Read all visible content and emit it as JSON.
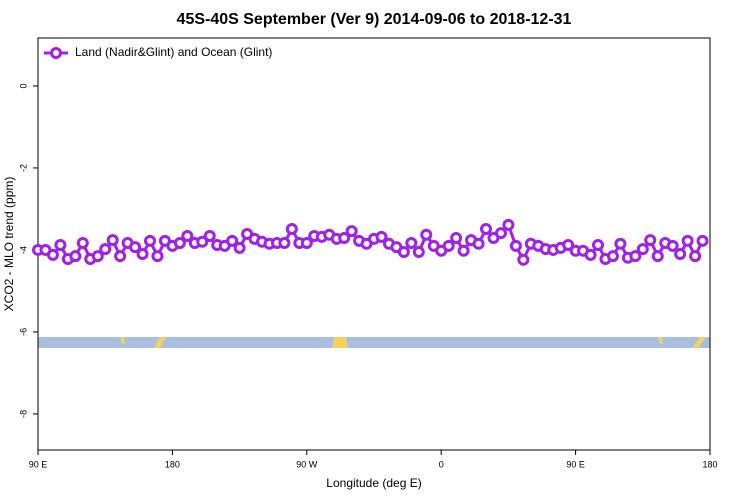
{
  "chart_data": {
    "type": "line",
    "title": "45S-40S September (Ver 9)   2014-09-06 to 2018-12-31",
    "xlabel": "Longitude (deg E)",
    "ylabel": "XCO2 - MLO trend (ppm)",
    "x": [
      90,
      95,
      100,
      105,
      110,
      115,
      120,
      125,
      130,
      135,
      140,
      145,
      150,
      155,
      160,
      165,
      170,
      175,
      180,
      185,
      190,
      195,
      200,
      205,
      210,
      215,
      220,
      225,
      230,
      235,
      240,
      245,
      250,
      255,
      260,
      265,
      270,
      275,
      280,
      285,
      290,
      295,
      300,
      305,
      310,
      315,
      320,
      325,
      330,
      335,
      340,
      345,
      350,
      355,
      360,
      365,
      370,
      375,
      380,
      385,
      390,
      395,
      400,
      405,
      410,
      415,
      420,
      425,
      430,
      435,
      440,
      445,
      450,
      455,
      460,
      465,
      470,
      475,
      480,
      485,
      490,
      495,
      500,
      505,
      510,
      515,
      520,
      525,
      530,
      535
    ],
    "series": [
      {
        "name": "Land (Nadir&Glint) and Ocean (Glint)",
        "color": "#a020f0",
        "values": [
          -4.0,
          -4.0,
          -4.12,
          -3.88,
          -4.22,
          -4.15,
          -3.83,
          -4.22,
          -4.15,
          -3.98,
          -3.76,
          -4.15,
          -3.83,
          -3.93,
          -4.1,
          -3.78,
          -4.15,
          -3.78,
          -3.9,
          -3.83,
          -3.66,
          -3.83,
          -3.8,
          -3.66,
          -3.88,
          -3.9,
          -3.78,
          -3.95,
          -3.61,
          -3.73,
          -3.8,
          -3.85,
          -3.83,
          -3.83,
          -3.49,
          -3.83,
          -3.83,
          -3.66,
          -3.68,
          -3.63,
          -3.73,
          -3.71,
          -3.54,
          -3.78,
          -3.85,
          -3.73,
          -3.68,
          -3.85,
          -3.93,
          -4.05,
          -3.83,
          -4.05,
          -3.63,
          -3.9,
          -4.02,
          -3.9,
          -3.71,
          -4.02,
          -3.76,
          -3.85,
          -3.49,
          -3.71,
          -3.59,
          -3.39,
          -3.9,
          -4.24,
          -3.85,
          -3.9,
          -3.98,
          -4.0,
          -3.95,
          -3.88,
          -4.02,
          -4.02,
          -4.12,
          -3.88,
          -4.22,
          -4.15,
          -3.85,
          -4.19,
          -4.15,
          -3.98,
          -3.76,
          -4.15,
          -3.83,
          -3.9,
          -4.1,
          -3.78,
          -4.15,
          -3.78
        ]
      }
    ],
    "xlim": [
      90,
      540
    ],
    "xticks": [
      {
        "value": 90,
        "label": "90 E"
      },
      180,
      {
        "value": 270,
        "label": "90 W"
      },
      {
        "value": 360,
        "label": "0"
      },
      {
        "value": 450,
        "label": "90 E"
      },
      {
        "value": 540,
        "label": "180"
      }
    ],
    "ylim": [
      -8.88,
      1.17
    ],
    "yticks": [
      0,
      -2,
      -4,
      -6,
      -8
    ],
    "legend": "upper left"
  }
}
